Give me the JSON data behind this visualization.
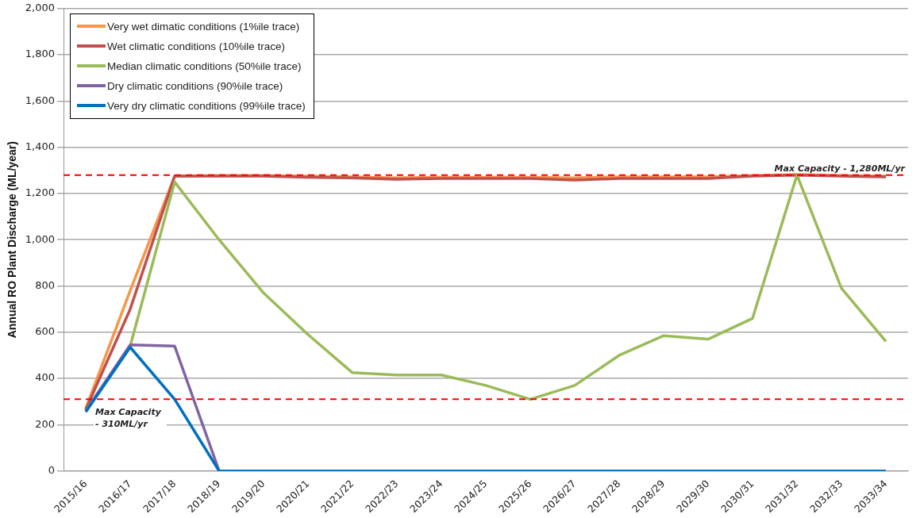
{
  "chart_data": {
    "type": "line",
    "ylabel": "Annual RO Plant Discharge (ML/year)",
    "categories": [
      "2015/16",
      "2016/17",
      "2017/18",
      "2018/19",
      "2019/20",
      "2020/21",
      "2021/22",
      "2022/23",
      "2023/24",
      "2024/25",
      "2025/26",
      "2026/27",
      "2027/28",
      "2028/29",
      "2029/30",
      "2030/31",
      "2031/32",
      "2032/33",
      "2033/34"
    ],
    "series": [
      {
        "name": "Very wet dimatic conditions (1%ile trace)",
        "color": "#f79646",
        "values": [
          270,
          780,
          1275,
          1278,
          1278,
          1275,
          1272,
          1268,
          1270,
          1270,
          1270,
          1268,
          1272,
          1272,
          1272,
          1278,
          1282,
          1278,
          1275
        ]
      },
      {
        "name": "Wet climatic conditions (10%ile trace)",
        "color": "#c0504d",
        "values": [
          265,
          700,
          1275,
          1275,
          1275,
          1270,
          1268,
          1262,
          1265,
          1265,
          1265,
          1258,
          1265,
          1265,
          1265,
          1275,
          1280,
          1275,
          1272
        ]
      },
      {
        "name": "Median climatic conditions (50%ile trace)",
        "color": "#9bbb59",
        "values": [
          260,
          540,
          1250,
          1000,
          770,
          590,
          425,
          415,
          415,
          370,
          310,
          370,
          500,
          585,
          570,
          660,
          1280,
          790,
          560
        ]
      },
      {
        "name": "Dry climatic conditions (90%ile trace)",
        "color": "#8064a2",
        "values": [
          260,
          545,
          540,
          0,
          null,
          null,
          null,
          null,
          null,
          null,
          null,
          null,
          null,
          null,
          null,
          null,
          null,
          null,
          null
        ]
      },
      {
        "name": "Very dry climatic conditions (99%ile trace)",
        "color": "#0070c0",
        "values": [
          255,
          535,
          310,
          0,
          0,
          0,
          0,
          0,
          0,
          0,
          0,
          0,
          0,
          0,
          0,
          0,
          0,
          0,
          0
        ]
      }
    ],
    "ylim": [
      0,
      2000
    ],
    "yticks": [
      {
        "value": 0,
        "label": "0"
      },
      {
        "value": 200,
        "label": "200"
      },
      {
        "value": 400,
        "label": "400"
      },
      {
        "value": 600,
        "label": "600"
      },
      {
        "value": 800,
        "label": "800"
      },
      {
        "value": 1000,
        "label": "1,000"
      },
      {
        "value": 1200,
        "label": "1,200"
      },
      {
        "value": 1400,
        "label": "1,400"
      },
      {
        "value": 1600,
        "label": "1,600"
      },
      {
        "value": 1800,
        "label": "1,800"
      },
      {
        "value": 2000,
        "label": "2,000"
      }
    ],
    "ref_lines": [
      {
        "axis": "y",
        "value": 1280,
        "label": "Max Capacity - 1,280ML/yr",
        "color": "#ff0000",
        "line_style": "dashed"
      },
      {
        "axis": "y",
        "value": 310,
        "label": "Max Capacity - 310ML/yr",
        "color": "#ff0000",
        "line_style": "dashed"
      }
    ],
    "grid": "y",
    "legend": "top left",
    "marker": "none",
    "line_style": "solid"
  }
}
